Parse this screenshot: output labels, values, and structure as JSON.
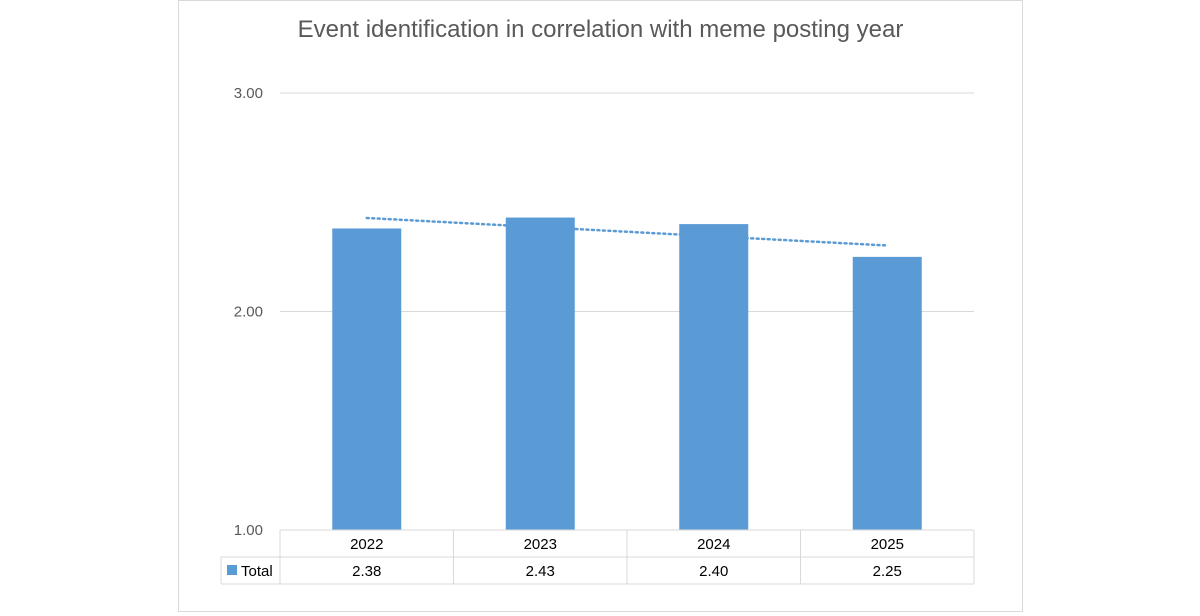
{
  "chart_data": {
    "type": "bar",
    "title": "Event identification in correlation with meme posting year",
    "categories": [
      "2022",
      "2023",
      "2024",
      "2025"
    ],
    "series": [
      {
        "name": "Total",
        "values": [
          2.38,
          2.43,
          2.4,
          2.25
        ],
        "labels": [
          "2.38",
          "2.43",
          "2.40",
          "2.25"
        ],
        "color": "#5b9bd5"
      }
    ],
    "ylim": [
      1.0,
      3.0
    ],
    "yticks": [
      "1.00",
      "2.00",
      "3.00"
    ],
    "grid": true,
    "trendline": {
      "type": "linear",
      "style": "dotted",
      "color": "#5b9bd5"
    },
    "data_table": true
  }
}
